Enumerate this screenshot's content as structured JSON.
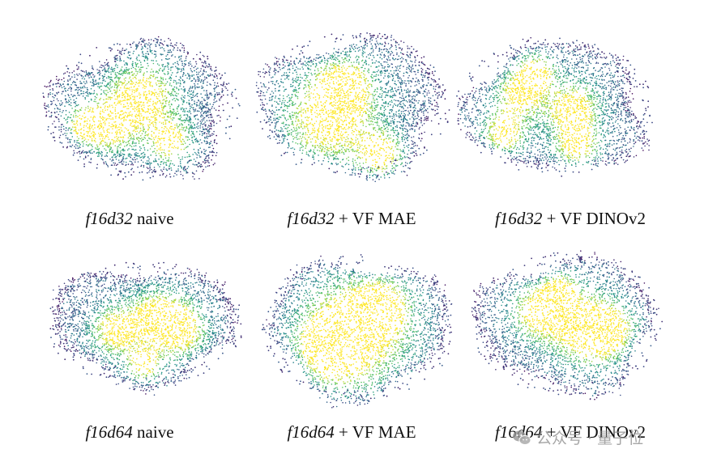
{
  "panels": [
    {
      "id": "p1",
      "name_italic": "f16d32",
      "rest": " naive"
    },
    {
      "id": "p2",
      "name_italic": "f16d32",
      "rest": " + VF MAE"
    },
    {
      "id": "p3",
      "name_italic": "f16d32",
      "rest": " + VF DINOv2"
    },
    {
      "id": "p4",
      "name_italic": "f16d64",
      "rest": " naive"
    },
    {
      "id": "p5",
      "name_italic": "f16d64",
      "rest": " + VF MAE"
    },
    {
      "id": "p6",
      "name_italic": "f16d64",
      "rest": " + VF DINOv2"
    }
  ],
  "watermark": {
    "text": "公众号 · 量子位",
    "icon": "wechat-icon"
  },
  "colors": {
    "colormap": "viridis",
    "low": "#440154",
    "mid": "#21918c",
    "high": "#fde725"
  }
}
